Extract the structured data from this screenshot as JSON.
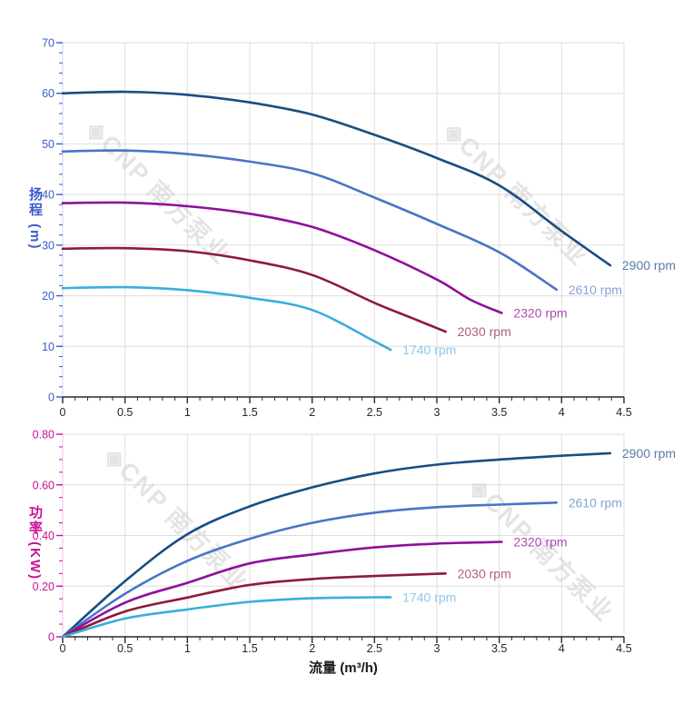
{
  "page": {
    "background": "#ffffff"
  },
  "watermark": {
    "logo": "◈",
    "text": "CNP 南方泵业",
    "color": "#cfcfcf"
  },
  "chart_data": [
    {
      "type": "line",
      "id": "head-curves",
      "title": "",
      "xlabel": "",
      "ylabel": "扬程 (m)",
      "axis_color": "#3b5bce",
      "x_axis_line_color": "#2a2a2a",
      "x_tick_label_color": "#1f2430",
      "grid": true,
      "grid_color": "#dedede",
      "xlim": [
        0,
        4.5
      ],
      "ylim": [
        0,
        70
      ],
      "x_ticks": {
        "values": [
          0,
          0.5,
          1,
          1.5,
          2,
          2.5,
          3,
          3.5,
          4,
          4.5
        ],
        "labels": [
          "0",
          "0.5",
          "1",
          "1.5",
          "2",
          "2.5",
          "3",
          "3.5",
          "4",
          "4.5"
        ],
        "minor_step": 0.1
      },
      "y_ticks": {
        "values": [
          0,
          10,
          20,
          30,
          40,
          50,
          60,
          70
        ],
        "labels": [
          "0",
          "10",
          "20",
          "30",
          "40",
          "50",
          "60",
          "70"
        ],
        "minor_step": 2
      },
      "series": [
        {
          "name": "2900 rpm",
          "color": "#174e84",
          "label_color": "#5a7c9e",
          "x": [
            0,
            0.5,
            1,
            1.5,
            2,
            2.5,
            3,
            3.5,
            4,
            4.39
          ],
          "y": [
            60,
            60.3,
            59.7,
            58.2,
            55.8,
            51.8,
            47.2,
            41.8,
            32.8,
            26
          ]
        },
        {
          "name": "2610 rpm",
          "color": "#4a74c8",
          "label_color": "#84a3d6",
          "x": [
            0,
            0.5,
            1,
            1.5,
            2,
            2.5,
            3,
            3.5,
            3.96
          ],
          "y": [
            48.5,
            48.7,
            48.0,
            46.5,
            44.2,
            39.4,
            34.2,
            28.6,
            21.2
          ]
        },
        {
          "name": "2320 rpm",
          "color": "#8f0f9b",
          "label_color": "#aa4cb2",
          "x": [
            0,
            0.5,
            1,
            1.5,
            2,
            2.5,
            3,
            3.27,
            3.52
          ],
          "y": [
            38.3,
            38.4,
            37.7,
            36.2,
            33.6,
            29.0,
            23.2,
            19.2,
            16.6
          ]
        },
        {
          "name": "2030 rpm",
          "color": "#8e1a38",
          "label_color": "#b05f7d",
          "x": [
            0,
            0.5,
            1,
            1.5,
            2,
            2.5,
            2.8,
            3.07
          ],
          "y": [
            29.3,
            29.4,
            28.8,
            27.0,
            24.1,
            18.6,
            15.6,
            12.9
          ]
        },
        {
          "name": "1740 rpm",
          "color": "#3badde",
          "label_color": "#8cc6ec",
          "x": [
            0,
            0.5,
            1,
            1.5,
            2,
            2.5,
            2.63
          ],
          "y": [
            21.5,
            21.7,
            21.1,
            19.6,
            17.2,
            11.0,
            9.3
          ]
        }
      ]
    },
    {
      "type": "line",
      "id": "power-curves",
      "title": "",
      "xlabel": "流量 (m³/h)",
      "ylabel": "功率 (KW)",
      "axis_color": "#cc1097",
      "x_axis_line_color": "#2a2a2a",
      "x_tick_label_color": "#1f2430",
      "grid": true,
      "grid_color": "#dedede",
      "xlim": [
        0,
        4.5
      ],
      "ylim": [
        0,
        0.8
      ],
      "x_ticks": {
        "values": [
          0,
          0.5,
          1,
          1.5,
          2,
          2.5,
          3,
          3.5,
          4,
          4.5
        ],
        "labels": [
          "0",
          "0.5",
          "1",
          "1.5",
          "2",
          "2.5",
          "3",
          "3.5",
          "4",
          "4.5"
        ],
        "minor_step": 0.1
      },
      "y_ticks": {
        "values": [
          0,
          0.2,
          0.4,
          0.6,
          0.8
        ],
        "labels": [
          "0",
          "0.20",
          "0.40",
          "0.60",
          "0.80"
        ],
        "minor_step": 0.05
      },
      "series": [
        {
          "name": "2900 rpm",
          "color": "#174e84",
          "label_color": "#5a7c9e",
          "x": [
            0,
            0.5,
            1,
            1.5,
            2,
            2.5,
            3,
            3.5,
            4,
            4.39
          ],
          "y": [
            0,
            0.22,
            0.405,
            0.515,
            0.59,
            0.645,
            0.68,
            0.7,
            0.715,
            0.725
          ]
        },
        {
          "name": "2610 rpm",
          "color": "#4a74c8",
          "label_color": "#84a3d6",
          "x": [
            0,
            0.5,
            1,
            1.5,
            2,
            2.5,
            3,
            3.5,
            3.96
          ],
          "y": [
            0,
            0.17,
            0.3,
            0.387,
            0.45,
            0.49,
            0.512,
            0.522,
            0.53
          ]
        },
        {
          "name": "2320 rpm",
          "color": "#8f0f9b",
          "label_color": "#aa4cb2",
          "x": [
            0,
            0.5,
            1,
            1.5,
            2,
            2.5,
            3,
            3.52
          ],
          "y": [
            0,
            0.135,
            0.213,
            0.29,
            0.325,
            0.353,
            0.368,
            0.375
          ]
        },
        {
          "name": "2030 rpm",
          "color": "#8e1a38",
          "label_color": "#b05f7d",
          "x": [
            0,
            0.5,
            1,
            1.5,
            2,
            2.5,
            3.07
          ],
          "y": [
            0,
            0.1,
            0.155,
            0.205,
            0.228,
            0.24,
            0.25
          ]
        },
        {
          "name": "1740 rpm",
          "color": "#3badde",
          "label_color": "#8cc6ec",
          "x": [
            0,
            0.5,
            1,
            1.5,
            2,
            2.5,
            2.63
          ],
          "y": [
            0,
            0.072,
            0.108,
            0.138,
            0.152,
            0.156,
            0.156
          ]
        }
      ]
    }
  ]
}
